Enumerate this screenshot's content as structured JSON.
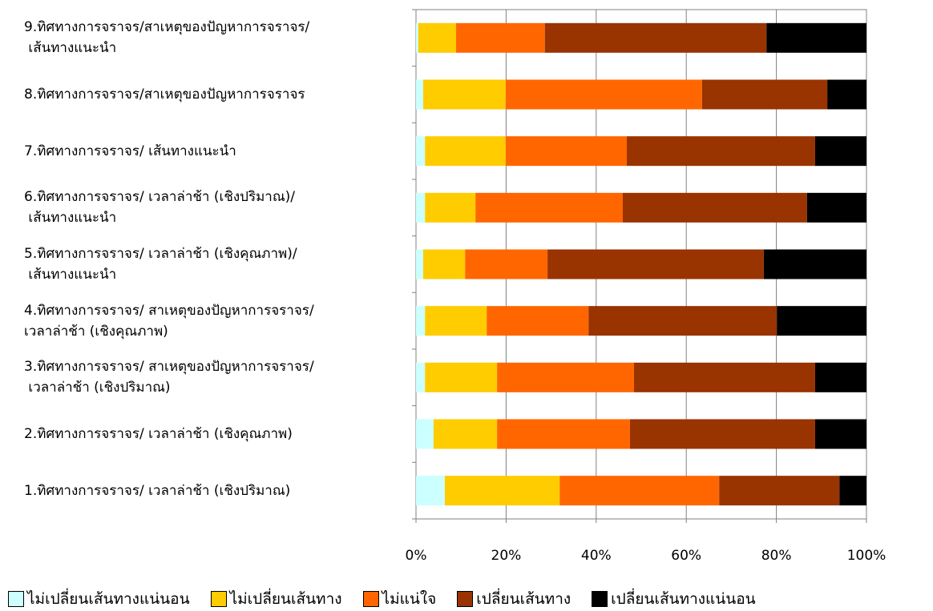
{
  "chart_data": {
    "type": "stacked-bar-horizontal",
    "categories": [
      "1.ทิศทางการจราจร/ เวลาล่าช้า (เชิงปริมาณ)",
      "2.ทิศทางการจราจร/ เวลาล่าช้า (เชิงคุณภาพ)",
      "3.ทิศทางการจราจร/ สาเหตุของปัญหาการจราจร/\n เวลาล่าช้า (เชิงปริมาณ)",
      "4.ทิศทางการจราจร/ สาเหตุของปัญหาการจราจร/\nเวลาล่าช้า (เชิงคุณภาพ)",
      "5.ทิศทางการจราจร/ เวลาล่าช้า (เชิงคุณภาพ)/\n เส้นทางแนะนำ",
      "6.ทิศทางการจราจร/ เวลาล่าช้า (เชิงปริมาณ)/\n เส้นทางแนะนำ",
      "7.ทิศทางการจราจร/ เส้นทางแนะนำ",
      "8.ทิศทางการจราจร/สาเหตุของปัญหาการจราจร",
      "9.ทิศทางการจราจร/สาเหตุของปัญหาการจราจร/\n เส้นทางแนะนำ"
    ],
    "series": [
      {
        "name": "ไม่เปลี่ยนเส้นทางแน่นอน",
        "color": "#ccffff",
        "values": [
          6.4,
          3.9,
          2.0,
          2.0,
          1.6,
          2.0,
          2.0,
          1.6,
          0.5
        ]
      },
      {
        "name": "ไม่เปลี่ยนเส้นทาง",
        "color": "#ffcc00",
        "values": [
          25.5,
          14.1,
          16.0,
          13.7,
          9.3,
          11.2,
          17.9,
          18.3,
          8.4
        ]
      },
      {
        "name": "ไม่แน่ใจ",
        "color": "#ff6600",
        "values": [
          35.4,
          29.5,
          30.4,
          22.6,
          18.3,
          32.7,
          26.9,
          43.6,
          19.7
        ]
      },
      {
        "name": "เปลี่ยนเส้นทาง",
        "color": "#993300",
        "values": [
          26.7,
          41.1,
          40.2,
          41.8,
          48.0,
          40.9,
          41.8,
          27.8,
          49.2
        ]
      },
      {
        "name": "เปลี่ยนเส้นทางแน่นอน",
        "color": "#000000",
        "values": [
          6.0,
          11.4,
          11.4,
          19.9,
          22.8,
          13.2,
          11.4,
          8.7,
          22.2
        ]
      }
    ],
    "xlim": [
      0,
      100
    ],
    "xticks": [
      {
        "value": 0,
        "label": "0%"
      },
      {
        "value": 20,
        "label": "20%"
      },
      {
        "value": 40,
        "label": "40%"
      },
      {
        "value": 60,
        "label": "60%"
      },
      {
        "value": 80,
        "label": "80%"
      },
      {
        "value": 100,
        "label": "100%"
      }
    ],
    "grid": true
  }
}
